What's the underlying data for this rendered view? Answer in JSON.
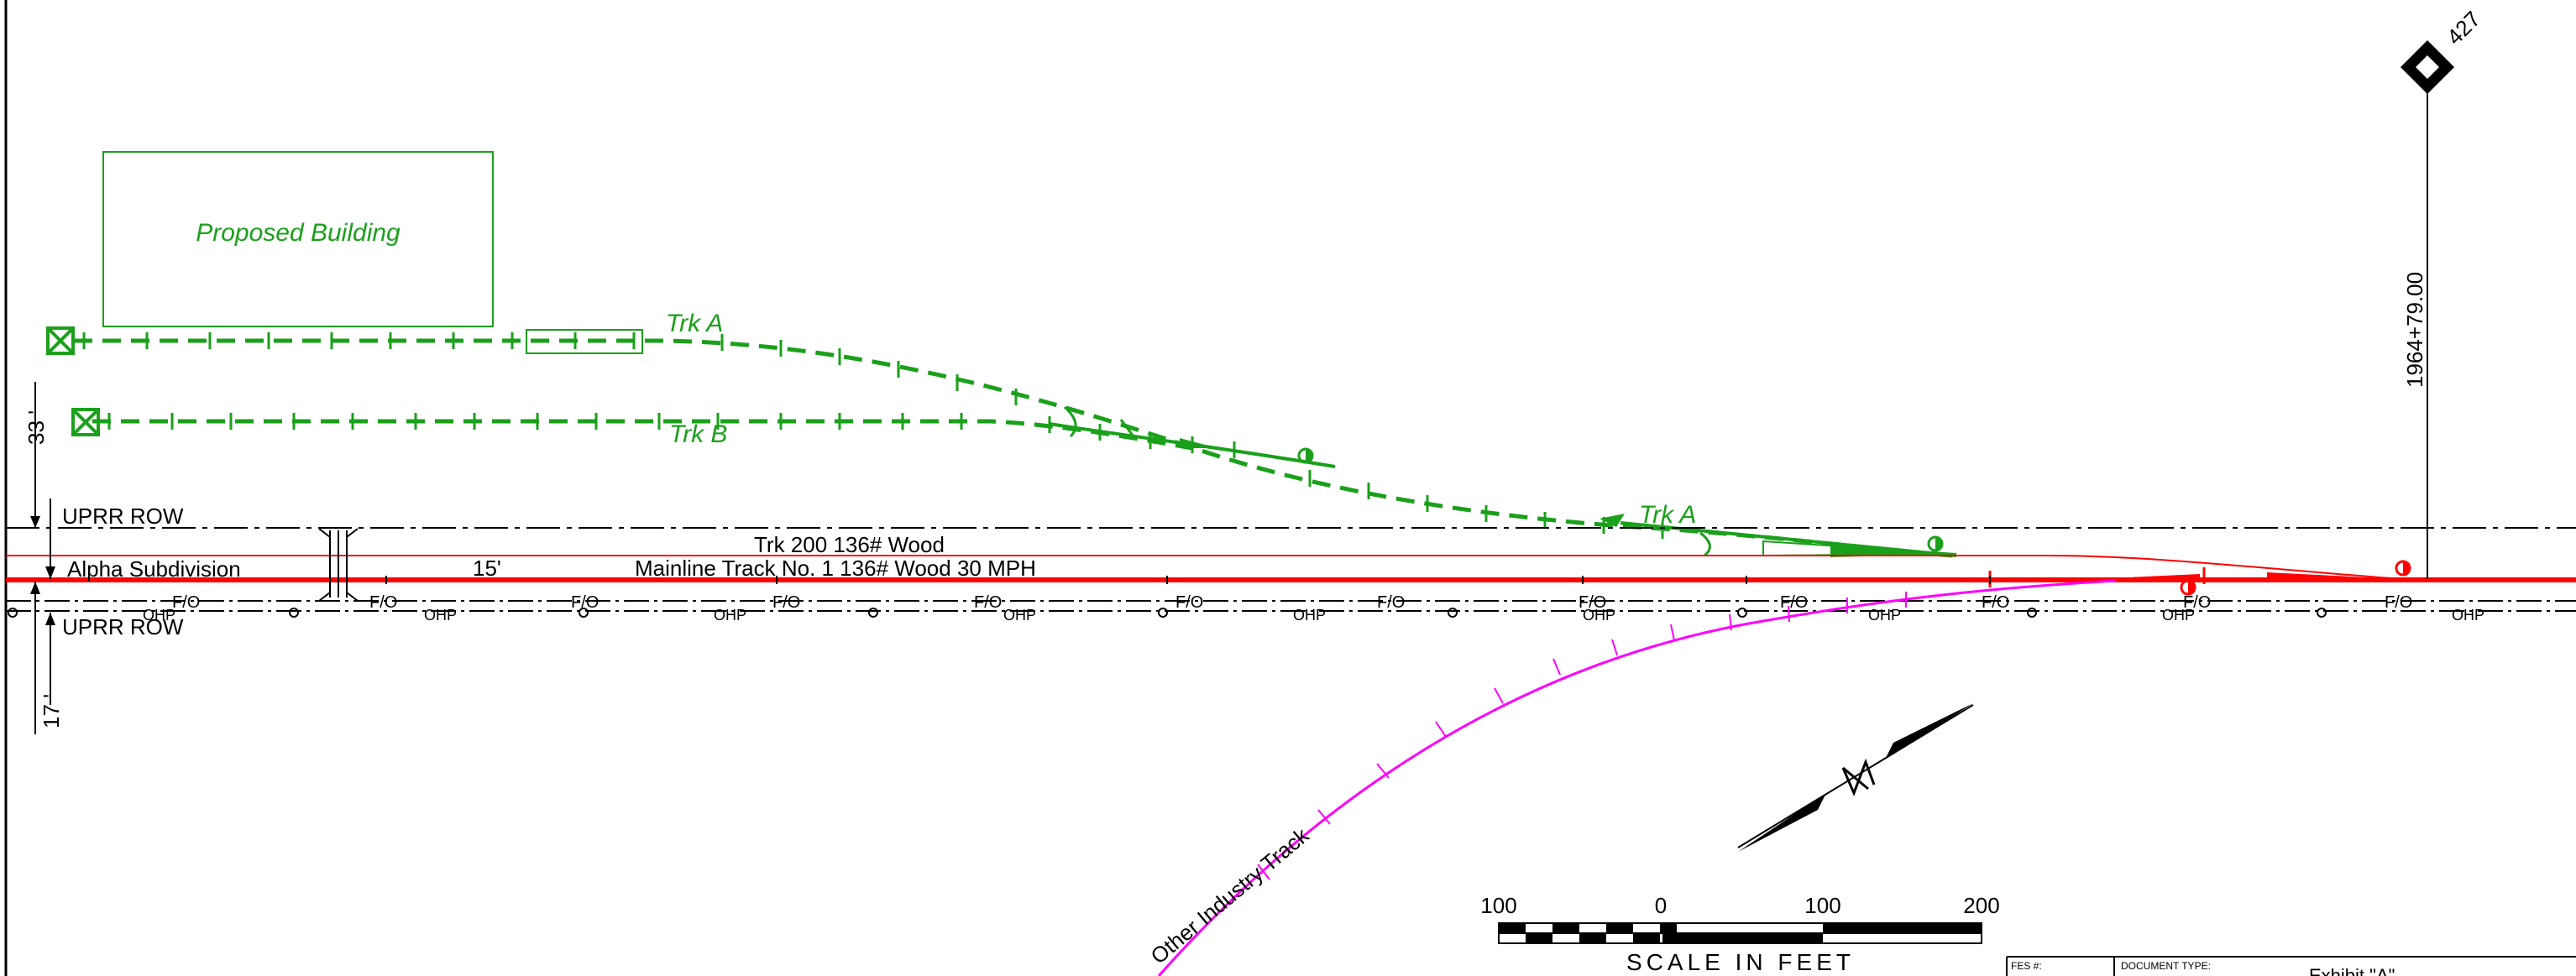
{
  "labels": {
    "proposed_building": "Proposed Building",
    "trk_a": "Trk A",
    "trk_b": "Trk B",
    "trk_a_lower": "Trk A",
    "uprr_row_top": "UPRR ROW",
    "uprr_row_bottom": "UPRR ROW",
    "alpha_subdivision": "Alpha Subdivision",
    "trk_200": "Trk 200  136#  Wood",
    "mainline": "Mainline Track No. 1 136#  Wood  30 MPH",
    "offset_15": "15'",
    "dim_33": "33 '",
    "dim_17": "17 '",
    "station": "1964+79.00",
    "milepost": "427",
    "other_industry": "Other Industry Track",
    "fo": "F/O",
    "oh": "OHP"
  },
  "scale_bar": {
    "ticks": [
      "100",
      "0",
      "100",
      "200"
    ],
    "title": "SCALE IN FEET"
  },
  "title_block": {
    "fes": "FES #:",
    "doc_type": "DOCUMENT TYPE:",
    "doc_value": "Exhibit \"A\""
  },
  "colors": {
    "proposed": "#1aa01a",
    "mainline": "#ff0000",
    "industry": "#ff00ff",
    "linework": "#000000"
  }
}
